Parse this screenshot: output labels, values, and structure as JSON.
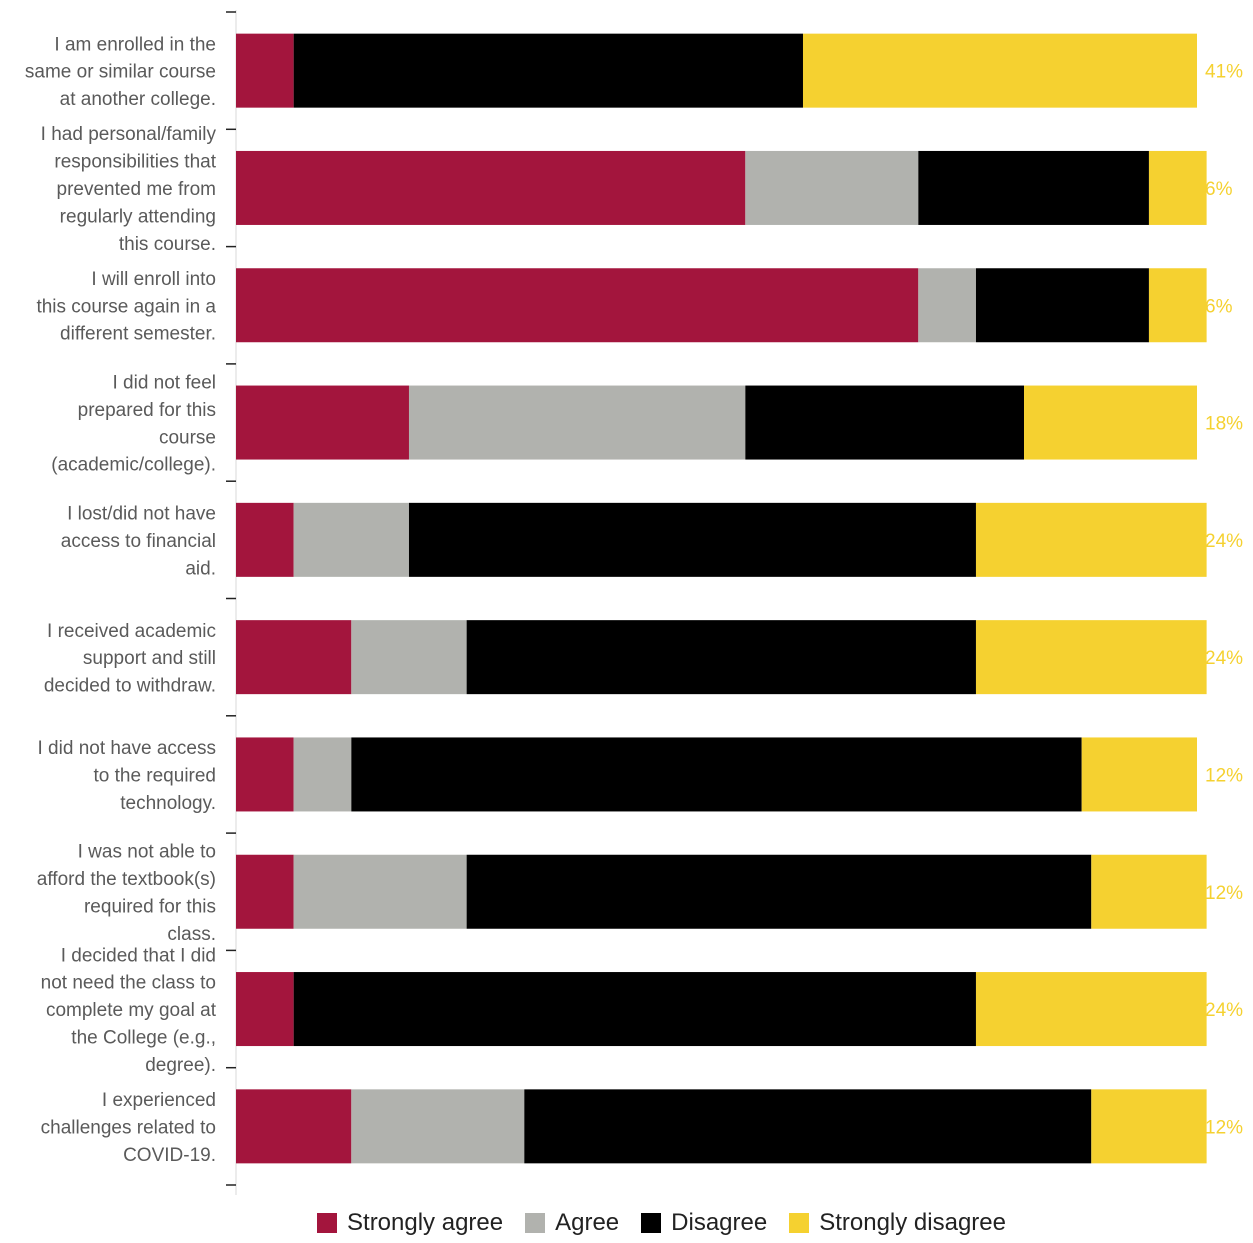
{
  "chart_data": {
    "type": "bar",
    "orientation": "horizontal",
    "stacked": true,
    "grid": false,
    "legend_position": "bottom",
    "categories": [
      [
        "I am enrolled in the",
        "same or similar course",
        "at another college."
      ],
      [
        "I had personal/family",
        "responsibilities that",
        "prevented me from",
        "regularly attending",
        "this course."
      ],
      [
        "I will enroll into",
        "this course again in a",
        "different semester."
      ],
      [
        "I did not feel",
        "prepared for this",
        "course",
        "(academic/college)."
      ],
      [
        "I lost/did not have",
        "access to financial",
        "aid."
      ],
      [
        "I received academic",
        "support and still",
        "decided to withdraw."
      ],
      [
        "I did not have access",
        "to the required",
        "technology."
      ],
      [
        "I was not able to",
        "afford the textbook(s)",
        "required for this",
        "class."
      ],
      [
        "I decided that I did",
        "not need the class to",
        "complete my goal at",
        "the College (e.g.,",
        "degree)."
      ],
      [
        "I experienced",
        "challenges related to",
        "COVID-19."
      ]
    ],
    "series": [
      {
        "name": "Strongly agree",
        "color": "#a3153d",
        "label_color": "#a3153d",
        "values": [
          6,
          53,
          71,
          18,
          6,
          12,
          6,
          6,
          6,
          12
        ]
      },
      {
        "name": "Agree",
        "color": "#b1b2ae",
        "label_color": "#ffffff",
        "values": [
          0,
          18,
          6,
          35,
          12,
          12,
          6,
          18,
          0,
          18
        ]
      },
      {
        "name": "Disagree",
        "color": "#000000",
        "label_color": "#000000",
        "values": [
          53,
          24,
          18,
          29,
          59,
          53,
          76,
          65,
          71,
          59
        ]
      },
      {
        "name": "Strongly disagree",
        "color": "#f5d130",
        "label_color": "#f5d130",
        "values": [
          41,
          6,
          6,
          18,
          24,
          24,
          12,
          12,
          24,
          12
        ]
      }
    ],
    "xlim": [
      0,
      100
    ]
  }
}
